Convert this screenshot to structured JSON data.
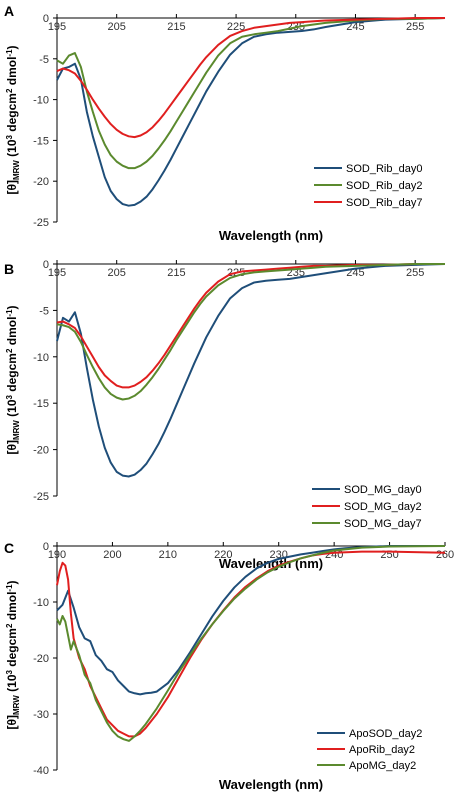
{
  "figure": {
    "panels": [
      "A",
      "B",
      "C"
    ]
  },
  "chart_data": [
    {
      "panel": "A",
      "type": "line",
      "xlabel": "Wavelength (nm)",
      "ylabel_main": "[θ]",
      "ylabel_sub": "MRW",
      "ylabel_rest": " (10",
      "ylabel_sup3": "3",
      "ylabel_mid": " degcm",
      "ylabel_sup2": "2",
      "ylabel_end": " dmol",
      "ylabel_supneg": "-1",
      "ylabel_close": ")",
      "xlim": [
        195,
        260
      ],
      "ylim": [
        -25,
        0
      ],
      "xticks": [
        195,
        205,
        215,
        225,
        235,
        245,
        255
      ],
      "yticks": [
        0,
        -5,
        -10,
        -15,
        -20,
        -25
      ],
      "legend_position": "bottom-right",
      "grid": false,
      "series": [
        {
          "name": "SOD_Rib_day0",
          "color": "#1f4e79",
          "x": [
            195,
            196,
            197,
            198,
            199,
            200,
            201,
            202,
            203,
            204,
            205,
            206,
            207,
            208,
            209,
            210,
            211,
            212,
            213,
            214,
            215,
            216,
            217,
            218,
            219,
            220,
            222,
            224,
            226,
            228,
            230,
            232,
            234,
            236,
            238,
            240,
            245,
            250,
            255,
            260
          ],
          "y": [
            -7.6,
            -6.2,
            -6.0,
            -5.6,
            -7.5,
            -11.5,
            -14.5,
            -17.0,
            -19.5,
            -21.2,
            -22.2,
            -22.8,
            -23.0,
            -22.9,
            -22.5,
            -21.9,
            -21.0,
            -19.9,
            -18.7,
            -17.4,
            -16.0,
            -14.6,
            -13.2,
            -11.8,
            -10.4,
            -9.0,
            -6.6,
            -4.5,
            -3.1,
            -2.3,
            -2.0,
            -1.8,
            -1.7,
            -1.6,
            -1.4,
            -1.1,
            -0.5,
            -0.2,
            -0.1,
            0.0
          ]
        },
        {
          "name": "SOD_Rib_day2",
          "color": "#5b8a2e",
          "x": [
            195,
            196,
            197,
            198,
            199,
            200,
            201,
            202,
            203,
            204,
            205,
            206,
            207,
            208,
            209,
            210,
            211,
            212,
            213,
            214,
            215,
            216,
            217,
            218,
            219,
            220,
            222,
            224,
            226,
            228,
            230,
            232,
            234,
            236,
            238,
            240,
            245,
            250,
            255,
            260
          ],
          "y": [
            -5.2,
            -5.6,
            -4.6,
            -4.3,
            -6.0,
            -9.0,
            -11.5,
            -13.8,
            -15.5,
            -16.8,
            -17.6,
            -18.1,
            -18.4,
            -18.4,
            -18.1,
            -17.6,
            -16.9,
            -16.0,
            -15.0,
            -13.9,
            -12.7,
            -11.5,
            -10.3,
            -9.1,
            -7.9,
            -6.7,
            -4.6,
            -3.1,
            -2.3,
            -2.0,
            -1.8,
            -1.6,
            -1.3,
            -1.0,
            -0.8,
            -0.6,
            -0.3,
            -0.1,
            -0.1,
            0.0
          ]
        },
        {
          "name": "SOD_Rib_day7",
          "color": "#e01f1f",
          "x": [
            195,
            196,
            197,
            198,
            199,
            200,
            201,
            202,
            203,
            204,
            205,
            206,
            207,
            208,
            209,
            210,
            211,
            212,
            213,
            214,
            215,
            216,
            217,
            218,
            219,
            220,
            222,
            224,
            226,
            228,
            230,
            232,
            234,
            236,
            238,
            240,
            245,
            250,
            255,
            260
          ],
          "y": [
            -6.5,
            -6.2,
            -6.4,
            -6.8,
            -7.7,
            -8.8,
            -10.0,
            -11.1,
            -12.1,
            -13.0,
            -13.7,
            -14.2,
            -14.5,
            -14.6,
            -14.4,
            -14.0,
            -13.4,
            -12.6,
            -11.7,
            -10.7,
            -9.7,
            -8.7,
            -7.7,
            -6.7,
            -5.7,
            -4.8,
            -3.3,
            -2.2,
            -1.6,
            -1.2,
            -1.0,
            -0.8,
            -0.6,
            -0.5,
            -0.4,
            -0.3,
            -0.2,
            -0.1,
            0.0,
            0.0
          ]
        }
      ]
    },
    {
      "panel": "B",
      "type": "line",
      "xlabel": "Wavelength (nm)",
      "ylabel_main": "[θ]",
      "ylabel_sub": "MRW",
      "ylabel_rest": " (10",
      "ylabel_sup3": "3",
      "ylabel_mid": " degcm",
      "ylabel_sup2": "2",
      "ylabel_end": " dmol",
      "ylabel_supneg": "-1",
      "ylabel_close": ")",
      "xlim": [
        195,
        260
      ],
      "ylim": [
        -25,
        0
      ],
      "xticks": [
        195,
        205,
        215,
        225,
        235,
        245,
        255
      ],
      "yticks": [
        0,
        -5,
        -10,
        -15,
        -20,
        -25
      ],
      "legend_position": "bottom-right",
      "grid": false,
      "series": [
        {
          "name": "SOD_MG_day0",
          "color": "#1f4e79",
          "x": [
            195,
            196,
            197,
            198,
            199,
            200,
            201,
            202,
            203,
            204,
            205,
            206,
            207,
            208,
            209,
            210,
            211,
            212,
            213,
            214,
            215,
            216,
            217,
            218,
            219,
            220,
            222,
            224,
            226,
            228,
            230,
            232,
            234,
            236,
            238,
            240,
            245,
            250,
            255,
            260
          ],
          "y": [
            -8.3,
            -5.8,
            -6.2,
            -5.2,
            -7.5,
            -11.2,
            -14.6,
            -17.5,
            -19.8,
            -21.4,
            -22.4,
            -22.8,
            -22.9,
            -22.7,
            -22.2,
            -21.5,
            -20.5,
            -19.4,
            -18.1,
            -16.7,
            -15.2,
            -13.7,
            -12.2,
            -10.7,
            -9.3,
            -7.9,
            -5.6,
            -3.7,
            -2.6,
            -2.0,
            -1.8,
            -1.7,
            -1.6,
            -1.4,
            -1.2,
            -1.0,
            -0.5,
            -0.2,
            -0.1,
            0.0
          ]
        },
        {
          "name": "SOD_MG_day2",
          "color": "#e01f1f",
          "x": [
            195,
            196,
            197,
            198,
            199,
            200,
            201,
            202,
            203,
            204,
            205,
            206,
            207,
            208,
            209,
            210,
            211,
            212,
            213,
            214,
            215,
            216,
            217,
            218,
            219,
            220,
            222,
            224,
            226,
            228,
            230,
            232,
            234,
            236,
            238,
            240,
            245,
            250,
            255,
            260
          ],
          "y": [
            -6.3,
            -6.2,
            -6.5,
            -6.9,
            -7.8,
            -8.9,
            -10.0,
            -11.1,
            -12.0,
            -12.6,
            -13.1,
            -13.3,
            -13.3,
            -13.1,
            -12.7,
            -12.2,
            -11.5,
            -10.7,
            -9.8,
            -8.8,
            -7.8,
            -6.8,
            -5.8,
            -4.8,
            -3.9,
            -3.1,
            -1.9,
            -1.1,
            -0.8,
            -0.7,
            -0.6,
            -0.5,
            -0.4,
            -0.3,
            -0.2,
            -0.2,
            -0.1,
            -0.1,
            0.0,
            0.0
          ]
        },
        {
          "name": "SOD_MG_day7",
          "color": "#5b8a2e",
          "x": [
            195,
            196,
            197,
            198,
            199,
            200,
            201,
            202,
            203,
            204,
            205,
            206,
            207,
            208,
            209,
            210,
            211,
            212,
            213,
            214,
            215,
            216,
            217,
            218,
            219,
            220,
            222,
            224,
            226,
            228,
            230,
            232,
            234,
            236,
            238,
            240,
            245,
            250,
            255,
            260
          ],
          "y": [
            -6.5,
            -6.6,
            -6.8,
            -7.3,
            -8.4,
            -9.8,
            -11.1,
            -12.3,
            -13.3,
            -14.0,
            -14.4,
            -14.6,
            -14.5,
            -14.2,
            -13.7,
            -13.0,
            -12.2,
            -11.3,
            -10.3,
            -9.3,
            -8.2,
            -7.2,
            -6.2,
            -5.2,
            -4.3,
            -3.5,
            -2.3,
            -1.5,
            -1.1,
            -0.9,
            -0.8,
            -0.7,
            -0.6,
            -0.5,
            -0.4,
            -0.3,
            -0.2,
            -0.1,
            0.0,
            0.0
          ]
        }
      ]
    },
    {
      "panel": "C",
      "type": "line",
      "xlabel": "Wavelength (nm)",
      "ylabel_main": "[θ]",
      "ylabel_sub": "MRW",
      "ylabel_rest": " (10",
      "ylabel_sup3": "3",
      "ylabel_mid": " degcm",
      "ylabel_sup2": "2",
      "ylabel_end": " dmol",
      "ylabel_supneg": "-1",
      "ylabel_close": ")",
      "xlim": [
        190,
        260
      ],
      "ylim": [
        -40,
        0
      ],
      "xticks": [
        190,
        200,
        210,
        220,
        230,
        240,
        250,
        260
      ],
      "yticks": [
        0,
        -10,
        -20,
        -30,
        -40
      ],
      "legend_position": "bottom-right",
      "grid": false,
      "series": [
        {
          "name": "ApoSOD_day2",
          "color": "#1f4e79",
          "x": [
            190,
            191,
            192,
            193,
            194,
            195,
            196,
            197,
            198,
            199,
            200,
            201,
            202,
            203,
            204,
            205,
            206,
            207,
            208,
            210,
            212,
            214,
            216,
            218,
            220,
            222,
            224,
            226,
            228,
            230,
            232,
            234,
            236,
            238,
            240,
            242,
            245,
            250,
            255,
            260
          ],
          "y": [
            -11.5,
            -10.5,
            -8.0,
            -11.0,
            -14.5,
            -16.5,
            -17.0,
            -19.5,
            -20.5,
            -22.0,
            -22.5,
            -24.0,
            -25.0,
            -26.0,
            -26.3,
            -26.5,
            -26.3,
            -26.2,
            -26.0,
            -24.5,
            -22.0,
            -19.0,
            -15.8,
            -12.6,
            -9.8,
            -7.4,
            -5.5,
            -4.0,
            -3.0,
            -2.3,
            -1.9,
            -1.5,
            -1.2,
            -0.9,
            -0.6,
            -0.4,
            -0.2,
            0.0,
            0.0,
            0.0
          ]
        },
        {
          "name": "ApoRib_day2",
          "color": "#e01f1f",
          "x": [
            190,
            190.5,
            191,
            191.5,
            192,
            192.5,
            193,
            194,
            195,
            196,
            197,
            198,
            199,
            200,
            201,
            202,
            203,
            204,
            205,
            206,
            208,
            210,
            212,
            214,
            216,
            218,
            220,
            222,
            224,
            226,
            228,
            230,
            232,
            234,
            236,
            238,
            240,
            245,
            250,
            260
          ],
          "y": [
            -7.0,
            -4.5,
            -3.0,
            -3.5,
            -6.0,
            -12.0,
            -16.5,
            -20.0,
            -22.0,
            -25.0,
            -27.0,
            -29.0,
            -31.0,
            -32.0,
            -33.0,
            -33.5,
            -34.0,
            -34.0,
            -33.5,
            -32.5,
            -30.0,
            -27.0,
            -23.5,
            -20.0,
            -16.8,
            -14.0,
            -11.5,
            -9.2,
            -7.3,
            -5.8,
            -4.5,
            -3.5,
            -2.8,
            -2.2,
            -1.7,
            -1.4,
            -1.2,
            -1.0,
            -1.0,
            -1.2
          ]
        },
        {
          "name": "ApoMG_day2",
          "color": "#5b8a2e",
          "x": [
            190,
            190.5,
            191,
            191.5,
            192,
            192.5,
            193,
            194,
            195,
            196,
            197,
            198,
            199,
            200,
            201,
            202,
            203,
            204,
            205,
            206,
            208,
            210,
            212,
            214,
            216,
            218,
            220,
            222,
            224,
            226,
            228,
            230,
            232,
            234,
            236,
            238,
            240,
            245,
            250,
            260
          ],
          "y": [
            -13.0,
            -14.0,
            -12.5,
            -13.5,
            -16.0,
            -18.5,
            -17.0,
            -19.5,
            -23.0,
            -24.5,
            -27.5,
            -29.5,
            -31.5,
            -33.0,
            -34.0,
            -34.5,
            -34.8,
            -34.0,
            -33.0,
            -31.8,
            -29.0,
            -25.8,
            -22.5,
            -19.5,
            -16.6,
            -14.0,
            -11.6,
            -9.4,
            -7.6,
            -6.0,
            -4.7,
            -3.7,
            -2.9,
            -2.2,
            -1.7,
            -1.2,
            -0.8,
            -0.3,
            -0.1,
            0.0
          ]
        }
      ]
    }
  ]
}
